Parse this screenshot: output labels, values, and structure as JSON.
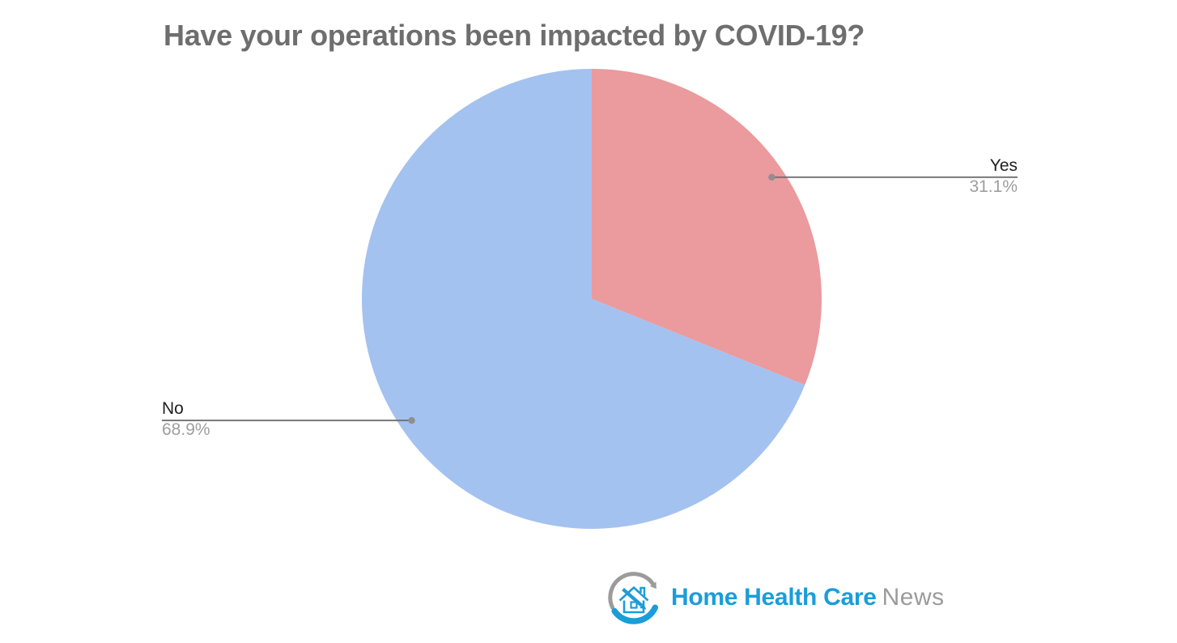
{
  "chart_data": {
    "type": "pie",
    "title": "Have your operations been impacted by COVID-19?",
    "series": [
      {
        "label": "Yes",
        "value": 31.1,
        "display": "31.1%",
        "color": "#eb9a9d"
      },
      {
        "label": "No",
        "value": 68.9,
        "display": "68.9%",
        "color": "#a4c2f0"
      }
    ],
    "start_angle_deg": 0,
    "direction": "clockwise",
    "legend_position": "outside-callouts-with-leader-lines",
    "grid": false
  },
  "colors": {
    "background": "#ffffff",
    "title_color": "#6e6e6e",
    "leader_line": "#6f6f6f",
    "dot": "#8f8f8f",
    "label_name": "#212121",
    "label_pct": "#9e9e9e",
    "logo_blue": "#1b9dd9",
    "logo_gray": "#9b9b9b",
    "logo_arc_gray": "#9b9b9b"
  },
  "branding": {
    "logo_bold": "Home Health Care",
    "logo_light": "News",
    "icon": "house-in-circular-arrow-logo-icon"
  }
}
